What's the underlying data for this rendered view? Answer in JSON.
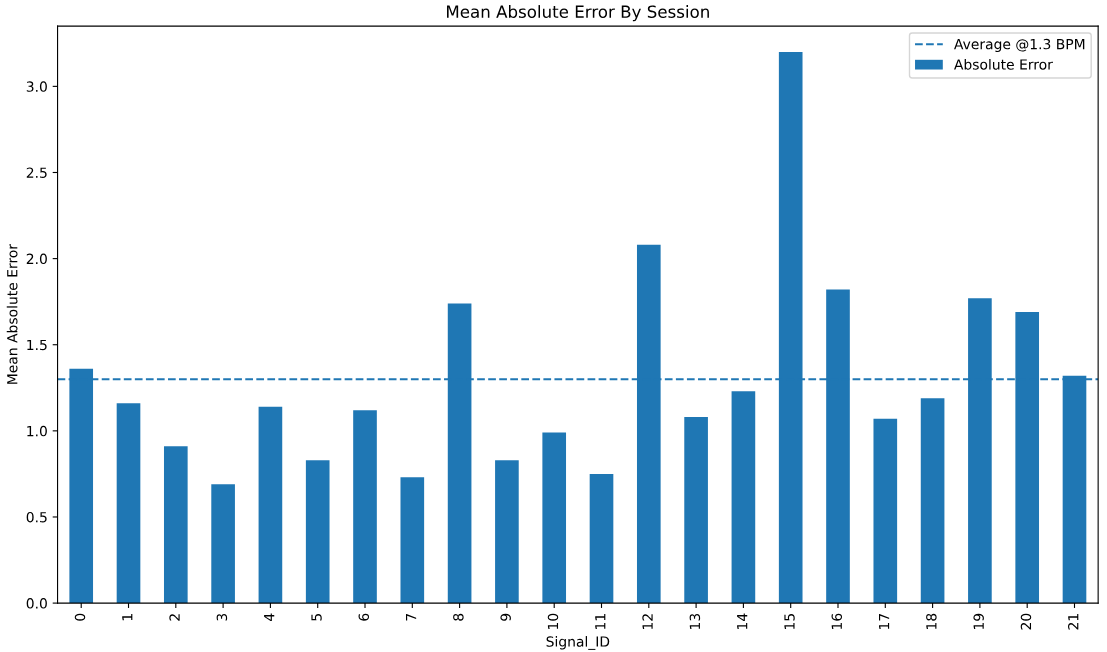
{
  "chart_data": {
    "type": "bar",
    "title": "Mean Absolute Error By Session",
    "xlabel": "Signal_ID",
    "ylabel": "Mean Absolute Error",
    "categories": [
      "0",
      "1",
      "2",
      "3",
      "4",
      "5",
      "6",
      "7",
      "8",
      "9",
      "10",
      "11",
      "12",
      "13",
      "14",
      "15",
      "16",
      "17",
      "18",
      "19",
      "20",
      "21"
    ],
    "series": [
      {
        "name": "Absolute Error",
        "color": "#1f77b4",
        "values": [
          1.36,
          1.16,
          0.91,
          0.69,
          1.14,
          0.83,
          1.12,
          0.73,
          1.74,
          0.83,
          0.99,
          0.75,
          2.08,
          1.08,
          1.23,
          3.2,
          1.82,
          1.07,
          1.19,
          1.77,
          1.69,
          1.32
        ]
      }
    ],
    "ylim": [
      0,
      3.35
    ],
    "yticks": [
      {
        "value": 0,
        "label": "0.0"
      },
      {
        "value": 0.5,
        "label": "0.5"
      },
      {
        "value": 1,
        "label": "1.0"
      },
      {
        "value": 1.5,
        "label": "1.5"
      },
      {
        "value": 2,
        "label": "2.0"
      },
      {
        "value": 2.5,
        "label": "2.5"
      },
      {
        "value": 3,
        "label": "3.0"
      }
    ],
    "ref_lines": [
      {
        "axis": "y",
        "value": 1.3,
        "label": "Average @1.3 BPM",
        "color": "#1f77b4",
        "line_style": "dashed"
      }
    ],
    "legend": "top right",
    "grid": false
  }
}
